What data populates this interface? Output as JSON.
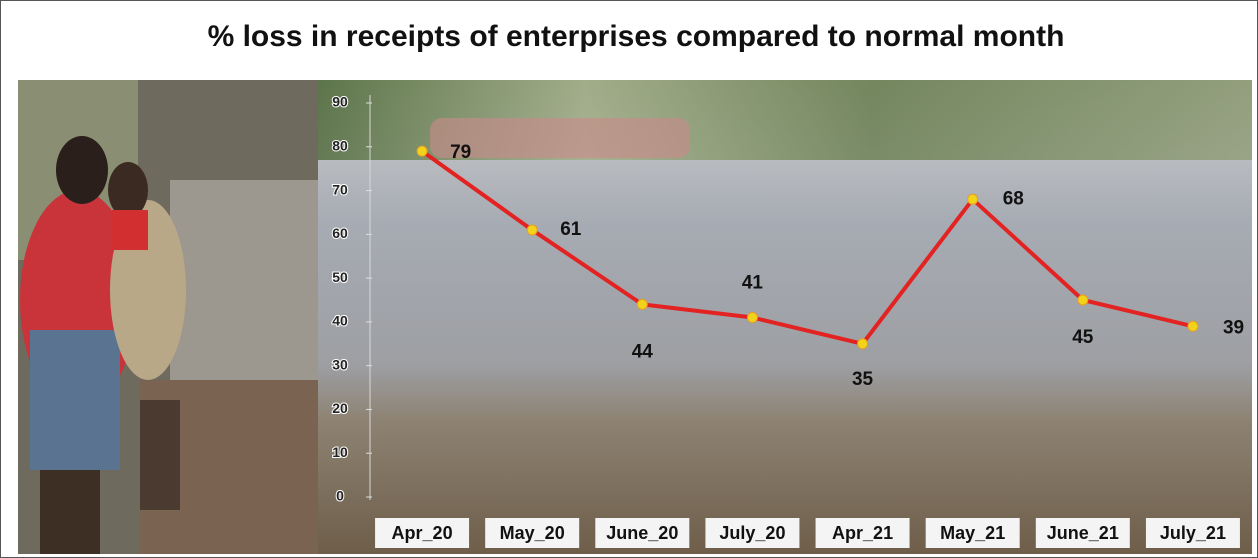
{
  "chart_data": {
    "type": "line",
    "title": "% loss in receipts of enterprises compared to normal month",
    "categories": [
      "Apr_20",
      "May_20",
      "June_20",
      "July_20",
      "Apr_21",
      "May_21",
      "June_21",
      "July_21"
    ],
    "values": [
      79,
      61,
      44,
      41,
      35,
      68,
      45,
      39
    ],
    "color": "#e32222",
    "marker_color": "#f2d21a",
    "ylim": [
      0,
      90
    ],
    "yticks": [
      0,
      10,
      20,
      30,
      40,
      50,
      60,
      70,
      80,
      90
    ]
  }
}
